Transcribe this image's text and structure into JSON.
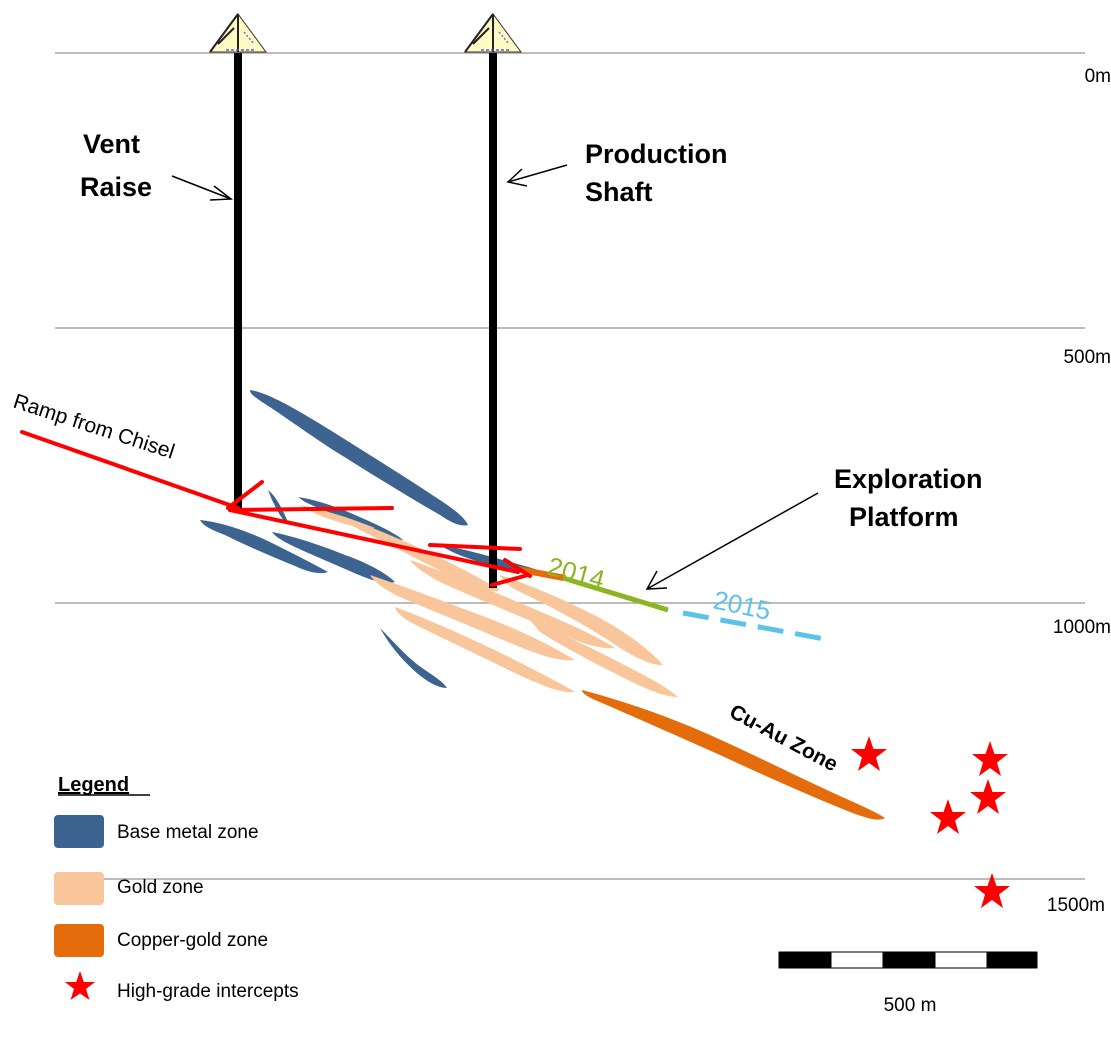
{
  "depth_labels": [
    "0m",
    "500m",
    "1000m",
    "1500m"
  ],
  "labels": {
    "vent_raise": [
      "Vent",
      "Raise"
    ],
    "production_shaft": [
      "Production",
      "Shaft"
    ],
    "exploration_platform": [
      "Exploration",
      "Platform"
    ],
    "ramp": "Ramp from Chisel",
    "cu_au_zone": "Cu-Au Zone",
    "year_2014": "2014",
    "year_2015": "2015"
  },
  "legend": {
    "title": "Legend",
    "items": [
      {
        "label": "Base metal zone",
        "color": "#3d6491"
      },
      {
        "label": "Gold zone",
        "color": "#f9c59a"
      },
      {
        "label": "Copper-gold zone",
        "color": "#e46c0a"
      },
      {
        "label": "High-grade intercepts",
        "color": "#ff0000"
      }
    ]
  },
  "scale_bar": {
    "label": "500 m"
  },
  "colors": {
    "base_metal": "#3d6491",
    "gold": "#f9c59a",
    "copper_gold": "#e46c0a",
    "ramp": "#ff0000",
    "drift_2014": "#8cb523",
    "drift_2015": "#5bc4e6",
    "shaft": "#000000",
    "depth_line": "#a6a6a6"
  }
}
